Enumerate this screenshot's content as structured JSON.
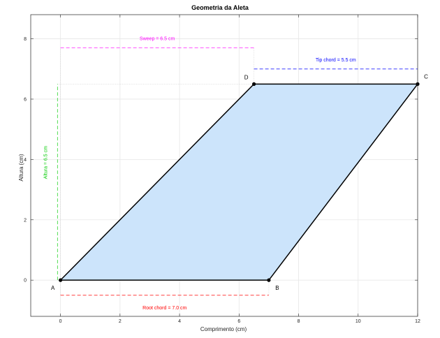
{
  "chart_data": {
    "type": "area",
    "title": "Geometria da Aleta",
    "xlabel": "Comprimento (cm)",
    "ylabel": "Altura (cm)",
    "xlim": [
      -1,
      12
    ],
    "ylim": [
      -1.2,
      8.8
    ],
    "xticks": [
      0,
      2,
      4,
      6,
      8,
      10,
      12
    ],
    "yticks": [
      0,
      2,
      4,
      6,
      8
    ],
    "grid": true,
    "fill_color": "#cce4fb",
    "outline_color": "#000000",
    "vertices": [
      {
        "name": "A",
        "x": 0,
        "y": 0
      },
      {
        "name": "B",
        "x": 7.0,
        "y": 0
      },
      {
        "name": "C",
        "x": 12.0,
        "y": 6.5
      },
      {
        "name": "D",
        "x": 6.5,
        "y": 6.5
      }
    ],
    "dimensions": [
      {
        "label": "Root chord = 7.0 cm",
        "color": "#ff0000",
        "from": [
          0,
          -0.5
        ],
        "to": [
          7.0,
          -0.5
        ]
      },
      {
        "label": "Tip chord = 5.5 cm",
        "color": "#0000ff",
        "from": [
          6.5,
          7.0
        ],
        "to": [
          12.0,
          7.0
        ]
      },
      {
        "label": "Sweep = 6.5 cm",
        "color": "#ff00ff",
        "from": [
          0,
          7.7
        ],
        "to": [
          6.5,
          7.7
        ]
      },
      {
        "label": "Altura = 6.5 cm",
        "color": "#00cc00",
        "from": [
          -0.1,
          0
        ],
        "to": [
          -0.1,
          6.5
        ]
      }
    ]
  }
}
